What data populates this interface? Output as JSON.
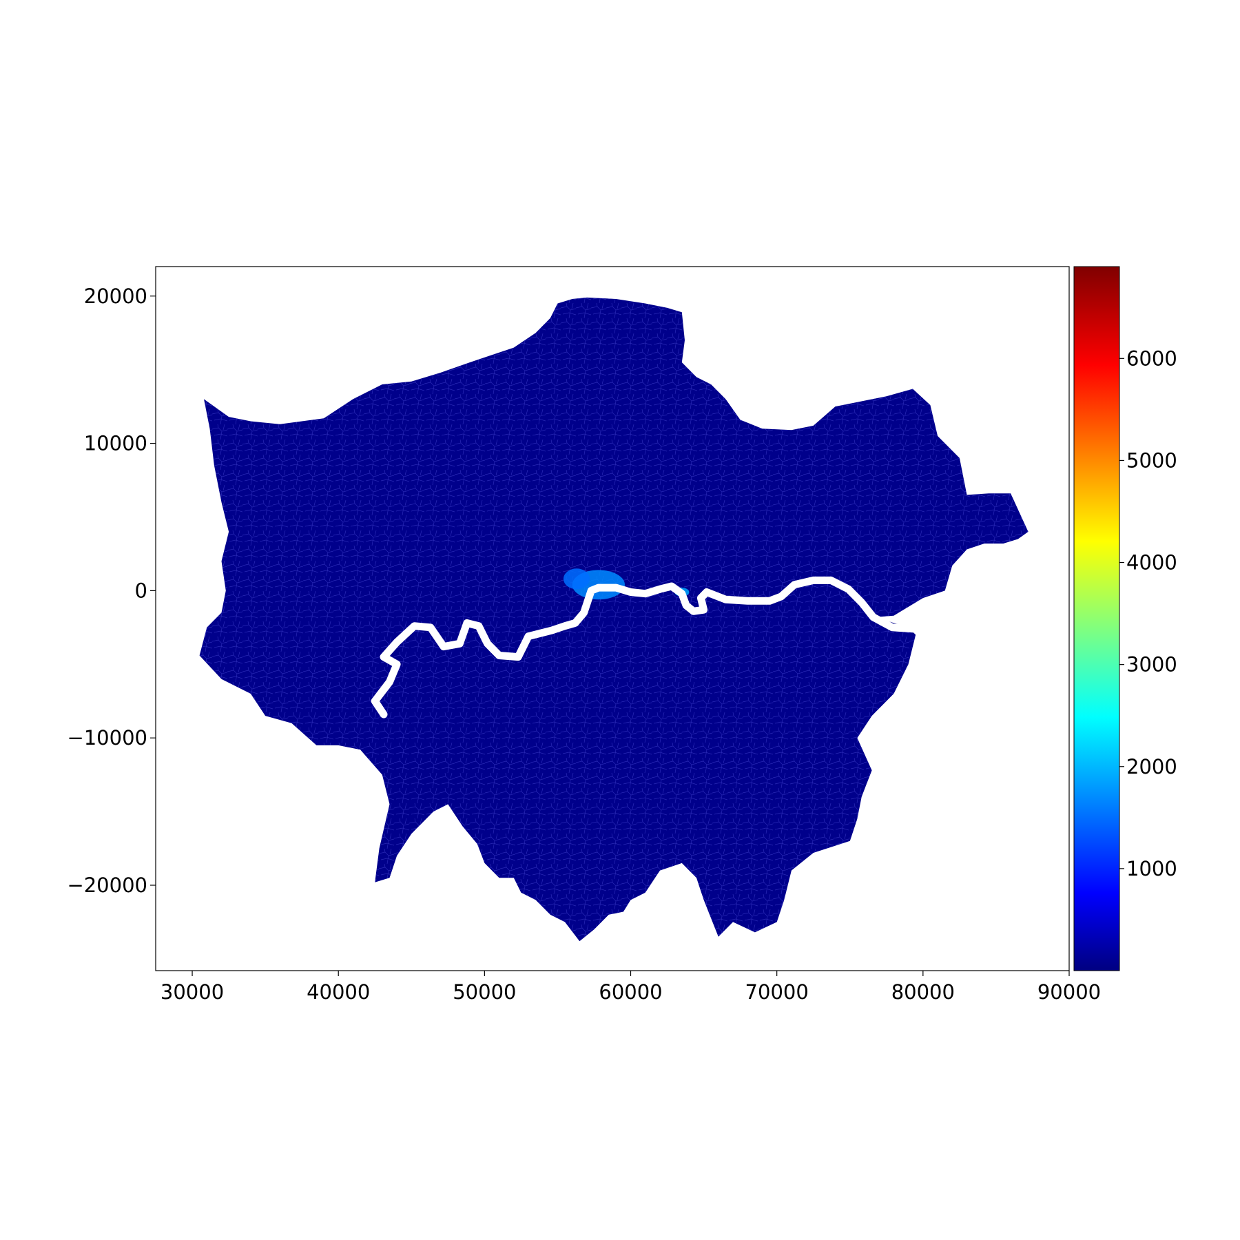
{
  "chart_data": {
    "type": "choropleth",
    "title": "",
    "xlabel": "",
    "ylabel": "",
    "xlim": [
      27500,
      90000
    ],
    "ylim": [
      -25800,
      22000
    ],
    "x_ticks": [
      30000,
      40000,
      50000,
      60000,
      70000,
      80000,
      90000
    ],
    "y_ticks": [
      20000,
      10000,
      0,
      -10000,
      -20000
    ],
    "grid": false,
    "colormap": "jet",
    "color_range": [
      0,
      6900
    ],
    "colorbar_ticks": [
      1000,
      2000,
      3000,
      4000,
      5000,
      6000
    ],
    "dominant_fill": "#00008b",
    "river_color": "#ffffff",
    "boundary": [
      [
        30800,
        13000
      ],
      [
        32500,
        11800
      ],
      [
        34000,
        11500
      ],
      [
        36000,
        11300
      ],
      [
        39000,
        11700
      ],
      [
        41000,
        13000
      ],
      [
        43000,
        14000
      ],
      [
        45000,
        14200
      ],
      [
        47000,
        14800
      ],
      [
        49000,
        15500
      ],
      [
        50500,
        16000
      ],
      [
        52000,
        16500
      ],
      [
        53500,
        17500
      ],
      [
        54500,
        18500
      ],
      [
        55000,
        19500
      ],
      [
        56000,
        19800
      ],
      [
        57000,
        19900
      ],
      [
        59000,
        19800
      ],
      [
        61000,
        19500
      ],
      [
        62500,
        19200
      ],
      [
        63500,
        18900
      ],
      [
        63700,
        17000
      ],
      [
        63500,
        15500
      ],
      [
        64500,
        14500
      ],
      [
        65500,
        14000
      ],
      [
        66500,
        13000
      ],
      [
        67500,
        11600
      ],
      [
        69000,
        11000
      ],
      [
        71000,
        10900
      ],
      [
        72500,
        11200
      ],
      [
        74000,
        12500
      ],
      [
        75500,
        12800
      ],
      [
        77500,
        13200
      ],
      [
        79300,
        13700
      ],
      [
        80500,
        12600
      ],
      [
        81000,
        10500
      ],
      [
        82500,
        9000
      ],
      [
        83000,
        6500
      ],
      [
        84500,
        6600
      ],
      [
        86000,
        6600
      ],
      [
        87200,
        4000
      ],
      [
        86500,
        3500
      ],
      [
        85500,
        3200
      ],
      [
        84200,
        3200
      ],
      [
        83000,
        2800
      ],
      [
        82000,
        1700
      ],
      [
        81500,
        0
      ],
      [
        80000,
        -500
      ],
      [
        78000,
        -1700
      ],
      [
        76700,
        -1800
      ],
      [
        79000,
        -2500
      ],
      [
        79500,
        -3000
      ],
      [
        79000,
        -5000
      ],
      [
        78000,
        -7000
      ],
      [
        76500,
        -8500
      ],
      [
        75500,
        -10000
      ],
      [
        76500,
        -12200
      ],
      [
        75800,
        -14000
      ],
      [
        75500,
        -15500
      ],
      [
        75000,
        -17000
      ],
      [
        72500,
        -17800
      ],
      [
        71000,
        -19000
      ],
      [
        70500,
        -21000
      ],
      [
        70000,
        -22500
      ],
      [
        68500,
        -23200
      ],
      [
        67000,
        -22500
      ],
      [
        66000,
        -23500
      ],
      [
        65000,
        -21000
      ],
      [
        64500,
        -19500
      ],
      [
        63500,
        -18500
      ],
      [
        62000,
        -19000
      ],
      [
        61000,
        -20500
      ],
      [
        60000,
        -21000
      ],
      [
        59500,
        -21800
      ],
      [
        58500,
        -22000
      ],
      [
        57500,
        -23000
      ],
      [
        56500,
        -23800
      ],
      [
        55500,
        -22500
      ],
      [
        54500,
        -22000
      ],
      [
        53500,
        -21000
      ],
      [
        52500,
        -20500
      ],
      [
        52000,
        -19500
      ],
      [
        51000,
        -19500
      ],
      [
        50000,
        -18500
      ],
      [
        49500,
        -17200
      ],
      [
        48500,
        -16000
      ],
      [
        47500,
        -14500
      ],
      [
        46500,
        -15000
      ],
      [
        45000,
        -16500
      ],
      [
        44000,
        -18000
      ],
      [
        43500,
        -19500
      ],
      [
        42500,
        -19800
      ],
      [
        42800,
        -17500
      ],
      [
        43500,
        -14500
      ],
      [
        43000,
        -12500
      ],
      [
        41500,
        -10800
      ],
      [
        40000,
        -10500
      ],
      [
        38500,
        -10500
      ],
      [
        36800,
        -9000
      ],
      [
        35000,
        -8500
      ],
      [
        34000,
        -7000
      ],
      [
        32000,
        -6000
      ],
      [
        30500,
        -4400
      ],
      [
        31000,
        -2500
      ],
      [
        32000,
        -1500
      ],
      [
        32300,
        0
      ],
      [
        32000,
        2000
      ],
      [
        32500,
        4000
      ],
      [
        32000,
        6000
      ],
      [
        31500,
        8500
      ],
      [
        31200,
        11000
      ],
      [
        30800,
        13000
      ]
    ],
    "river": [
      [
        43100,
        -8400
      ],
      [
        42500,
        -7500
      ],
      [
        43500,
        -6200
      ],
      [
        44000,
        -5000
      ],
      [
        43100,
        -4500
      ],
      [
        44000,
        -3500
      ],
      [
        45200,
        -2400
      ],
      [
        46300,
        -2500
      ],
      [
        47200,
        -3800
      ],
      [
        48300,
        -3600
      ],
      [
        48800,
        -2200
      ],
      [
        49600,
        -2400
      ],
      [
        50200,
        -3600
      ],
      [
        51000,
        -4400
      ],
      [
        52300,
        -4500
      ],
      [
        53000,
        -3100
      ],
      [
        54600,
        -2700
      ],
      [
        55500,
        -2400
      ],
      [
        56200,
        -2200
      ],
      [
        56800,
        -1500
      ],
      [
        57300,
        0
      ],
      [
        57800,
        200
      ],
      [
        59000,
        200
      ],
      [
        60000,
        -100
      ],
      [
        61000,
        -200
      ],
      [
        62000,
        100
      ],
      [
        62800,
        300
      ],
      [
        63500,
        -200
      ],
      [
        63800,
        -1000
      ],
      [
        64300,
        -1400
      ],
      [
        65000,
        -1300
      ],
      [
        64800,
        -500
      ],
      [
        65200,
        -100
      ],
      [
        66500,
        -600
      ],
      [
        68000,
        -700
      ],
      [
        69500,
        -700
      ],
      [
        70300,
        -400
      ],
      [
        71200,
        400
      ],
      [
        72500,
        700
      ],
      [
        73700,
        700
      ],
      [
        74900,
        100
      ],
      [
        75800,
        -800
      ],
      [
        76600,
        -1800
      ],
      [
        77900,
        -2500
      ],
      [
        79500,
        -2600
      ]
    ],
    "highlights": [
      {
        "center": [
          57800,
          400
        ],
        "radius": [
          1800,
          1000
        ],
        "value": 1700
      },
      {
        "center": [
          56300,
          800
        ],
        "radius": [
          900,
          700
        ],
        "value": 1500
      },
      {
        "center": [
          63500,
          -100
        ],
        "radius": [
          500,
          300
        ],
        "value": 1900
      }
    ]
  }
}
